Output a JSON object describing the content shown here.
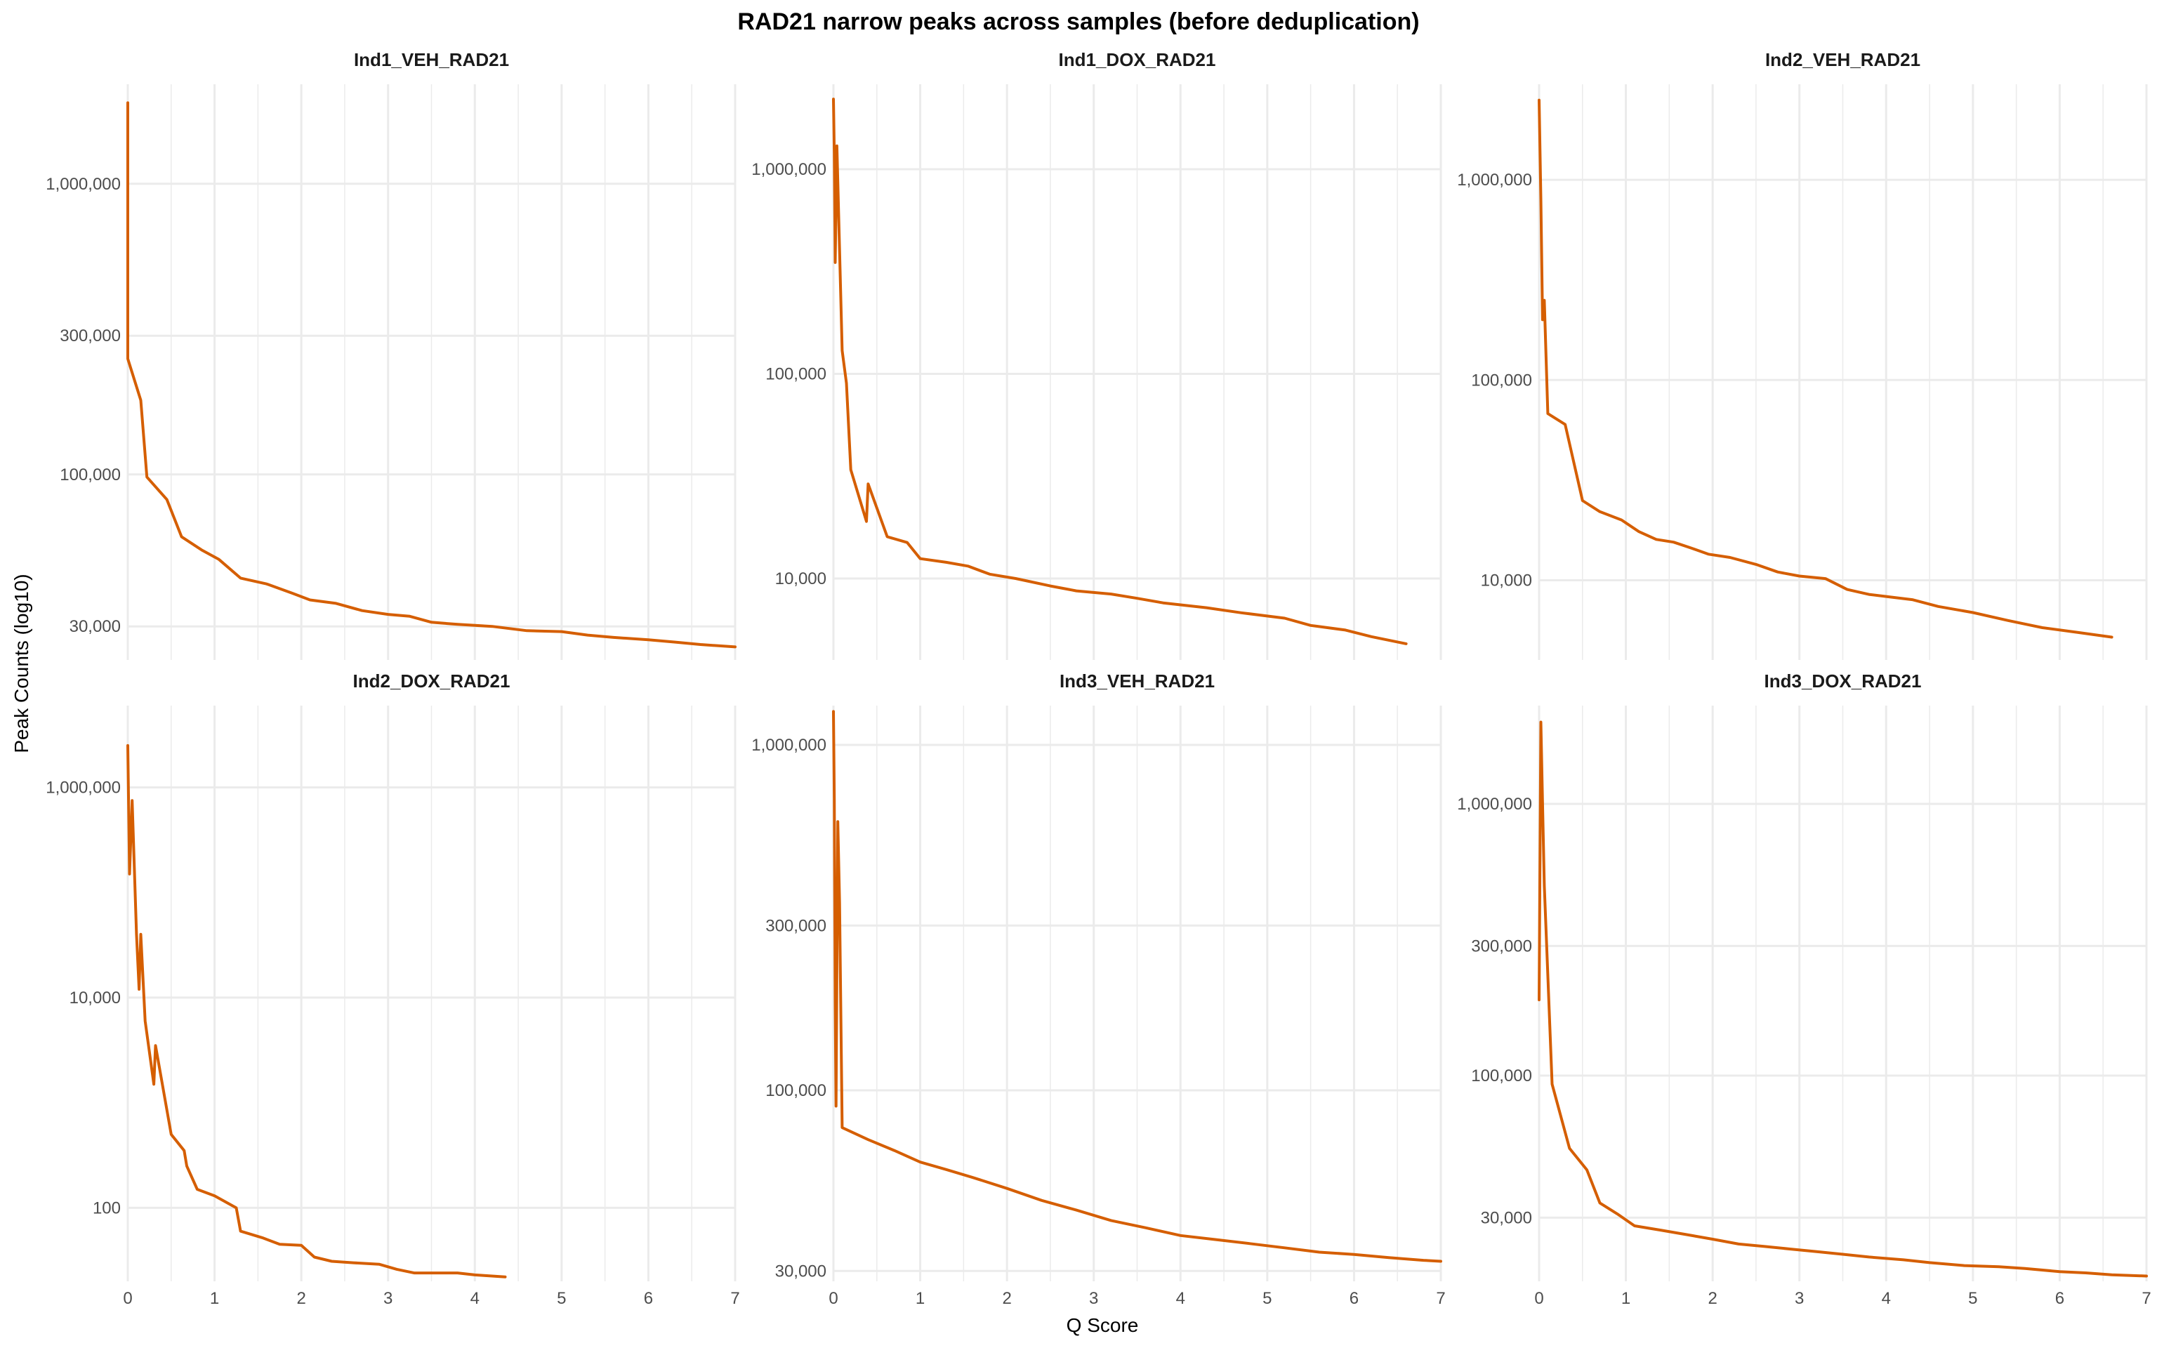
{
  "figure": {
    "title": "RAD21 narrow peaks across samples (before deduplication)",
    "xlabel": "Q Score",
    "ylabel": "Peak Counts (log10)",
    "line_color": "#D55E00",
    "grid_color": "#EBEBEB",
    "text_color": "#4D4D4D"
  },
  "chart_data": [
    {
      "type": "line",
      "title": "Ind1_VEH_RAD21",
      "xlabel": "Q Score",
      "ylabel": "Peak Counts (log10)",
      "log_y": true,
      "xlim": [
        0,
        7
      ],
      "ylim": [
        23000,
        2200000
      ],
      "xticks": [
        "0",
        "1",
        "2",
        "3",
        "4",
        "5",
        "6",
        "7"
      ],
      "yticks": [
        {
          "value": 30000,
          "label": "30,000"
        },
        {
          "value": 100000,
          "label": "100,000"
        },
        {
          "value": 300000,
          "label": "300,000"
        },
        {
          "value": 1000000,
          "label": "1,000,000"
        }
      ],
      "x": [
        0,
        0,
        0.15,
        0.22,
        0.45,
        0.62,
        0.85,
        1.05,
        1.3,
        1.6,
        1.9,
        2.1,
        2.4,
        2.7,
        3.0,
        3.25,
        3.5,
        3.8,
        4.2,
        4.6,
        5.0,
        5.3,
        5.6,
        6.0,
        6.3,
        6.6,
        7.0
      ],
      "y": [
        1900000,
        250000,
        180000,
        98000,
        82000,
        61000,
        55000,
        51000,
        44000,
        42000,
        39000,
        37000,
        36000,
        34000,
        33000,
        32500,
        31000,
        30500,
        30000,
        29000,
        28800,
        28000,
        27500,
        27000,
        26500,
        26000,
        25500
      ]
    },
    {
      "type": "line",
      "title": "Ind1_DOX_RAD21",
      "xlabel": "Q Score",
      "ylabel": "Peak Counts (log10)",
      "log_y": true,
      "xlim": [
        0,
        7
      ],
      "ylim": [
        4000,
        2600000
      ],
      "xticks": [
        "0",
        "1",
        "2",
        "3",
        "4",
        "5",
        "6",
        "7"
      ],
      "yticks": [
        {
          "value": 10000,
          "label": "10,000"
        },
        {
          "value": 100000,
          "label": "100,000"
        },
        {
          "value": 1000000,
          "label": "1,000,000"
        }
      ],
      "x": [
        0,
        0.01,
        0.02,
        0.04,
        0.06,
        0.1,
        0.15,
        0.2,
        0.38,
        0.4,
        0.62,
        0.85,
        1.0,
        1.3,
        1.55,
        1.8,
        2.1,
        2.5,
        2.8,
        3.2,
        3.5,
        3.8,
        4.3,
        4.7,
        5.2,
        5.5,
        5.9,
        6.2,
        6.6
      ],
      "y": [
        2200000,
        1200000,
        350000,
        1300000,
        600000,
        130000,
        90000,
        34000,
        19000,
        29000,
        16000,
        15000,
        12500,
        12000,
        11500,
        10500,
        10000,
        9200,
        8700,
        8400,
        8000,
        7600,
        7200,
        6800,
        6400,
        5900,
        5600,
        5200,
        4800
      ]
    },
    {
      "type": "line",
      "title": "Ind2_VEH_RAD21",
      "xlabel": "Q Score",
      "ylabel": "Peak Counts (log10)",
      "log_y": true,
      "xlim": [
        0,
        7
      ],
      "ylim": [
        4000,
        3000000
      ],
      "xticks": [
        "0",
        "1",
        "2",
        "3",
        "4",
        "5",
        "6",
        "7"
      ],
      "yticks": [
        {
          "value": 10000,
          "label": "10,000"
        },
        {
          "value": 100000,
          "label": "100,000"
        },
        {
          "value": 1000000,
          "label": "1,000,000"
        }
      ],
      "x": [
        0,
        0.02,
        0.04,
        0.06,
        0.1,
        0.3,
        0.5,
        0.7,
        0.95,
        1.15,
        1.35,
        1.55,
        1.75,
        1.95,
        2.2,
        2.5,
        2.75,
        3.0,
        3.3,
        3.55,
        3.8,
        4.0,
        4.3,
        4.6,
        5.0,
        5.4,
        5.8,
        6.2,
        6.6
      ],
      "y": [
        2500000,
        800000,
        200000,
        250000,
        68000,
        60000,
        25000,
        22000,
        20000,
        17500,
        16000,
        15500,
        14500,
        13500,
        13000,
        12000,
        11000,
        10500,
        10200,
        9000,
        8500,
        8300,
        8000,
        7400,
        6900,
        6300,
        5800,
        5500,
        5200
      ]
    },
    {
      "type": "line",
      "title": "Ind2_DOX_RAD21",
      "xlabel": "Q Score",
      "ylabel": "Peak Counts (log10)",
      "log_y": true,
      "xlim": [
        0,
        7
      ],
      "ylim": [
        20,
        6000000
      ],
      "xticks": [
        "0",
        "1",
        "2",
        "3",
        "4",
        "5",
        "6",
        "7"
      ],
      "yticks": [
        {
          "value": 100,
          "label": "100"
        },
        {
          "value": 10000,
          "label": "10,000"
        },
        {
          "value": 1000000,
          "label": "1,000,000"
        }
      ],
      "x": [
        0,
        0.02,
        0.05,
        0.1,
        0.13,
        0.15,
        0.2,
        0.3,
        0.32,
        0.5,
        0.65,
        0.68,
        0.8,
        1.0,
        1.25,
        1.3,
        1.55,
        1.75,
        2.0,
        2.15,
        2.35,
        2.6,
        2.9,
        3.1,
        3.3,
        3.8,
        4.0,
        4.35
      ],
      "y": [
        2500000,
        150000,
        750000,
        40000,
        12000,
        40000,
        6000,
        1500,
        3500,
        500,
        350,
        250,
        150,
        130,
        100,
        60,
        52,
        45,
        44,
        34,
        31,
        30,
        29,
        26,
        24,
        24,
        23,
        22
      ]
    },
    {
      "type": "line",
      "title": "Ind3_VEH_RAD21",
      "xlabel": "Q Score",
      "ylabel": "Peak Counts (log10)",
      "log_y": true,
      "xlim": [
        0,
        7
      ],
      "ylim": [
        28000,
        1300000
      ],
      "xticks": [
        "0",
        "1",
        "2",
        "3",
        "4",
        "5",
        "6",
        "7"
      ],
      "yticks": [
        {
          "value": 30000,
          "label": "30,000"
        },
        {
          "value": 100000,
          "label": "100,000"
        },
        {
          "value": 300000,
          "label": "300,000"
        },
        {
          "value": 1000000,
          "label": "1,000,000"
        }
      ],
      "x": [
        0,
        0.01,
        0.02,
        0.03,
        0.05,
        0.07,
        0.1,
        0.4,
        0.7,
        1.0,
        1.3,
        1.6,
        2.0,
        2.4,
        2.8,
        3.2,
        3.6,
        4.0,
        4.4,
        4.8,
        5.2,
        5.6,
        6.0,
        6.4,
        6.8,
        7.0
      ],
      "y": [
        1250000,
        700000,
        180000,
        90000,
        600000,
        350000,
        78000,
        72000,
        67000,
        62000,
        59000,
        56000,
        52000,
        48000,
        45000,
        42000,
        40000,
        38000,
        37000,
        36000,
        35000,
        34000,
        33500,
        32800,
        32200,
        32000
      ]
    },
    {
      "type": "line",
      "title": "Ind3_DOX_RAD21",
      "xlabel": "Q Score",
      "ylabel": "Peak Counts (log10)",
      "log_y": true,
      "xlim": [
        0,
        7
      ],
      "ylim": [
        17500,
        2300000
      ],
      "xticks": [
        "0",
        "1",
        "2",
        "3",
        "4",
        "5",
        "6",
        "7"
      ],
      "yticks": [
        {
          "value": 30000,
          "label": "30,000"
        },
        {
          "value": 100000,
          "label": "100,000"
        },
        {
          "value": 300000,
          "label": "300,000"
        },
        {
          "value": 1000000,
          "label": "1,000,000"
        }
      ],
      "x": [
        0,
        0.02,
        0.04,
        0.06,
        0.15,
        0.35,
        0.55,
        0.7,
        0.9,
        1.1,
        1.4,
        1.7,
        2.0,
        2.3,
        2.6,
        2.9,
        3.2,
        3.5,
        3.8,
        4.2,
        4.5,
        4.9,
        5.3,
        5.6,
        6.0,
        6.3,
        6.6,
        7.0
      ],
      "y": [
        190000,
        2000000,
        1000000,
        500000,
        93000,
        54000,
        45000,
        34000,
        31000,
        28000,
        27000,
        26000,
        25000,
        24000,
        23500,
        23000,
        22500,
        22000,
        21500,
        21000,
        20500,
        20000,
        19800,
        19500,
        19000,
        18800,
        18500,
        18300
      ]
    }
  ]
}
